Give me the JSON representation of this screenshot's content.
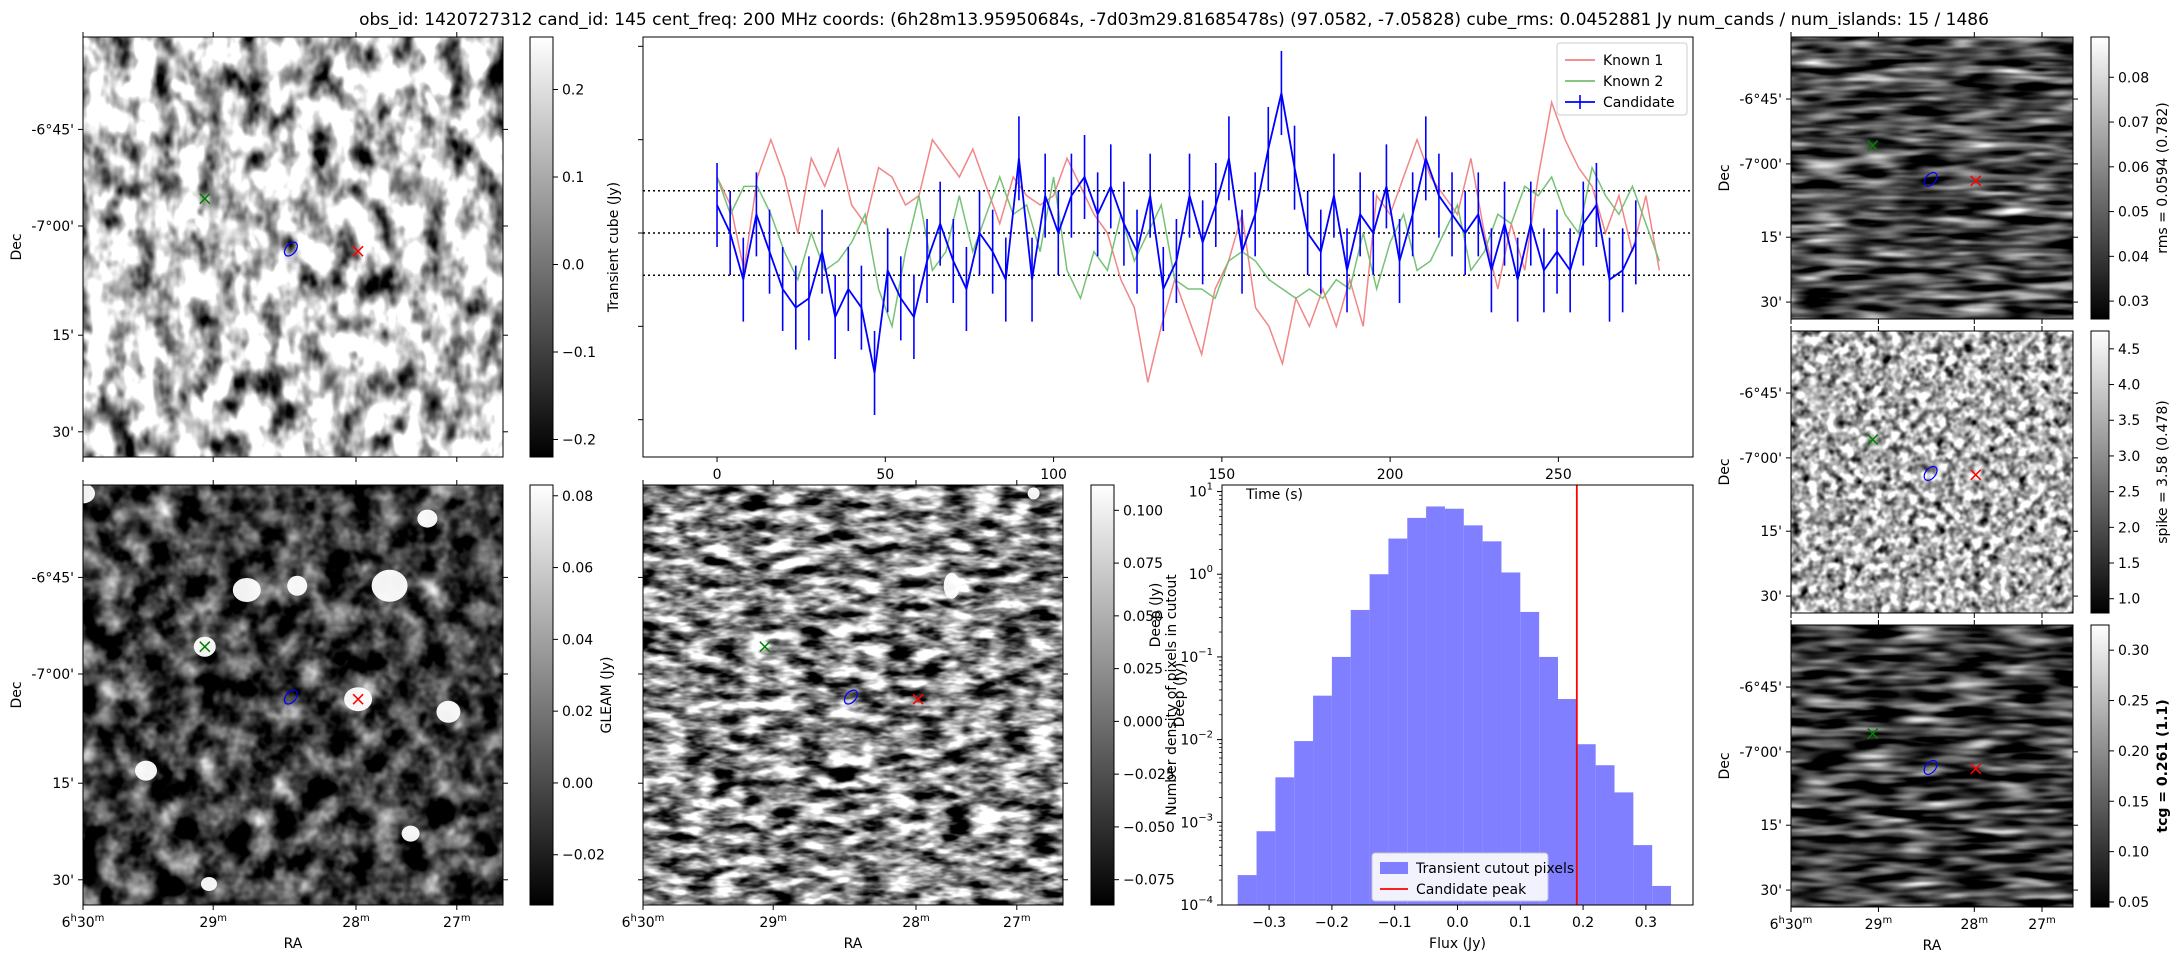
{
  "suptitle": "obs_id: 1420727312 cand_id: 145 cent_freq: 200 MHz coords: (6h28m13.95950684s, -7d03m29.81685478s) (97.0582, -7.05828) cube_rms: 0.0452881 Jy num_cands / num_islands: 15 / 1486",
  "axes_common": {
    "dec_ticks": [
      "-6°45'",
      "-7°00'",
      "15'",
      "30'"
    ],
    "dec_label": "Dec",
    "ra_ticks": [
      "6h30m",
      "29m",
      "28m",
      "27m"
    ],
    "ra_label": "RA"
  },
  "colors": {
    "known1": "#f08080",
    "known2": "#6fbf6f",
    "candidate": "#0000ff",
    "hist": "#7f7fff",
    "peak": "#ff0000",
    "marker_known1": "#ff0000",
    "marker_known2": "#008000",
    "marker_candidate": "#0000ff"
  },
  "chart_data": [
    {
      "id": "transient_map",
      "type": "heatmap",
      "colorbar": {
        "range": [
          -0.22,
          0.26
        ],
        "ticks": [
          "0.2",
          "0.1",
          "0.0",
          "−0.1",
          "−0.2"
        ],
        "tick_values": [
          0.2,
          0.1,
          0.0,
          -0.1,
          -0.2
        ]
      },
      "markers": [
        "known-2 (green x)",
        "candidate (blue ellipse)",
        "known-1 (red x)"
      ]
    },
    {
      "id": "lightcurve",
      "type": "line",
      "ylabel": "Transient cube (Jy)",
      "xlabel": "Time (s)",
      "x_ticks": [
        0,
        50,
        100,
        150,
        200,
        250
      ],
      "xlim": [
        -22,
        290
      ],
      "ylim": [
        -0.24,
        0.21
      ],
      "hlines": [
        0.0453,
        0.0,
        -0.0453
      ],
      "legend": {
        "position": "top-right",
        "entries": [
          "Known 1",
          "Known 2",
          "Candidate"
        ]
      },
      "series": [
        {
          "name": "Known 1",
          "x_step": 4,
          "values": [
            0.06,
            0.03,
            -0.04,
            0.06,
            0.1,
            0.06,
            0.0,
            0.08,
            0.05,
            0.09,
            0.03,
            0.01,
            0.07,
            0.06,
            0.03,
            0.04,
            0.1,
            0.08,
            0.06,
            0.09,
            0.05,
            0.01,
            0.06,
            0.04,
            0.03,
            0.04,
            0.08,
            0.05,
            0.02,
            0.0,
            -0.05,
            -0.08,
            -0.16,
            -0.1,
            -0.05,
            -0.09,
            -0.13,
            -0.06,
            -0.03,
            0.02,
            -0.08,
            -0.1,
            -0.14,
            -0.07,
            -0.1,
            -0.06,
            -0.1,
            -0.05,
            -0.1,
            0.04,
            0.02,
            0.06,
            0.1,
            0.06,
            0.04,
            0.02,
            0.08,
            0.0,
            -0.06,
            0.01,
            -0.04,
            0.06,
            0.14,
            0.1,
            0.07,
            0.05,
            0.0,
            0.04,
            -0.02,
            0.04,
            -0.04
          ]
        },
        {
          "name": "Known 2",
          "x_step": 4,
          "values": [
            0.06,
            0.02,
            0.05,
            0.05,
            0.02,
            -0.02,
            -0.05,
            0.0,
            -0.04,
            -0.03,
            -0.01,
            0.02,
            -0.06,
            -0.1,
            -0.02,
            0.04,
            -0.04,
            -0.02,
            0.04,
            -0.02,
            0.02,
            0.06,
            0.02,
            0.03,
            -0.02,
            0.06,
            -0.04,
            -0.07,
            -0.02,
            -0.04,
            0.02,
            -0.03,
            0.0,
            0.03,
            -0.05,
            -0.06,
            -0.06,
            -0.07,
            -0.03,
            -0.02,
            -0.03,
            -0.05,
            -0.06,
            -0.07,
            -0.06,
            -0.07,
            -0.05,
            -0.06,
            0.0,
            -0.06,
            -0.01,
            0.02,
            -0.04,
            -0.03,
            0.0,
            0.03,
            -0.04,
            -0.02,
            0.02,
            0.01,
            0.05,
            0.04,
            0.06,
            0.02,
            0.0,
            0.07,
            0.04,
            0.02,
            0.05,
            0.01,
            -0.03
          ]
        },
        {
          "name": "Candidate",
          "x_step": 3.9,
          "error": 0.045,
          "values": [
            0.03,
            0.0,
            -0.05,
            0.02,
            -0.02,
            -0.06,
            -0.08,
            -0.07,
            -0.02,
            -0.09,
            -0.06,
            -0.08,
            -0.15,
            -0.04,
            -0.07,
            -0.09,
            -0.03,
            0.01,
            -0.03,
            -0.06,
            0.0,
            -0.02,
            -0.05,
            0.08,
            -0.05,
            0.04,
            0.0,
            0.04,
            0.06,
            0.02,
            0.05,
            0.01,
            -0.02,
            0.04,
            -0.06,
            -0.03,
            0.04,
            -0.01,
            0.03,
            0.08,
            -0.02,
            0.02,
            0.09,
            0.15,
            0.07,
            0.0,
            -0.02,
            0.04,
            -0.04,
            0.02,
            0.0,
            0.05,
            -0.03,
            0.02,
            0.08,
            0.04,
            0.02,
            0.0,
            0.02,
            -0.04,
            0.01,
            -0.05,
            0.01,
            -0.04,
            -0.02,
            -0.04,
            0.01,
            0.03,
            -0.05,
            -0.04,
            -0.01
          ]
        }
      ]
    },
    {
      "id": "rms_map",
      "type": "heatmap",
      "colorbar": {
        "range": [
          0.026,
          0.089
        ],
        "label": "rms = 0.0594 (0.782)",
        "ticks": [
          "0.08",
          "0.07",
          "0.06",
          "0.05",
          "0.04",
          "0.03"
        ],
        "tick_values": [
          0.08,
          0.07,
          0.06,
          0.05,
          0.04,
          0.03
        ]
      }
    },
    {
      "id": "gleam_map",
      "type": "heatmap",
      "colorbar": {
        "range": [
          -0.034,
          0.083
        ],
        "label": "GLEAM (Jy)",
        "ticks": [
          "0.08",
          "0.06",
          "0.04",
          "0.02",
          "0.00",
          "−0.02"
        ],
        "tick_values": [
          0.08,
          0.06,
          0.04,
          0.02,
          0.0,
          -0.02
        ]
      }
    },
    {
      "id": "deep_map",
      "type": "heatmap",
      "colorbar": {
        "range": [
          -0.087,
          0.112
        ],
        "label": "Deep (Jy)",
        "ticks": [
          "0.100",
          "0.075",
          "0.050",
          "0.025",
          "0.000",
          "−0.025",
          "−0.050",
          "−0.075"
        ],
        "tick_values": [
          0.1,
          0.075,
          0.05,
          0.025,
          0.0,
          -0.025,
          -0.05,
          -0.075
        ]
      }
    },
    {
      "id": "histogram",
      "type": "bar",
      "xlabel": "Flux (Jy)",
      "ylabel": "Number density of pixels in cutout",
      "x_ticks": [
        "−0.3",
        "−0.2",
        "−0.1",
        "0.0",
        "0.1",
        "0.2",
        "0.3"
      ],
      "x_tick_values": [
        -0.3,
        -0.2,
        -0.1,
        0.0,
        0.1,
        0.2,
        0.3
      ],
      "xlim": [
        -0.375,
        0.375
      ],
      "y_scale": "log",
      "y_ticks": [
        "10^1",
        "10^0",
        "10^-1",
        "10^-2",
        "10^-3",
        "10^-4"
      ],
      "ylim": [
        0.0001,
        12
      ],
      "bin_edges": [
        -0.35,
        -0.32,
        -0.29,
        -0.26,
        -0.23,
        -0.2,
        -0.17,
        -0.14,
        -0.11,
        -0.08,
        -0.05,
        -0.02,
        0.01,
        0.04,
        0.07,
        0.1,
        0.13,
        0.16,
        0.19,
        0.22,
        0.25,
        0.28,
        0.31,
        0.34
      ],
      "values": [
        0.00023,
        0.00078,
        0.0035,
        0.0096,
        0.034,
        0.1,
        0.37,
        1.0,
        2.7,
        4.8,
        6.6,
        6.2,
        3.9,
        2.5,
        1.05,
        0.35,
        0.1,
        0.031,
        0.0088,
        0.0049,
        0.0023,
        0.00053,
        0.00017
      ],
      "peak_line": 0.19,
      "legend": {
        "position": "bottom-center",
        "entries": [
          "Transient cutout pixels",
          "Candidate peak"
        ]
      }
    },
    {
      "id": "spike_map",
      "type": "heatmap",
      "colorbar": {
        "range": [
          0.8,
          4.75
        ],
        "label": "spike = 3.58 (0.478)",
        "ticks": [
          "4.5",
          "4.0",
          "3.5",
          "3.0",
          "2.5",
          "2.0",
          "1.5",
          "1.0"
        ],
        "tick_values": [
          4.5,
          4.0,
          3.5,
          3.0,
          2.5,
          2.0,
          1.5,
          1.0
        ]
      }
    },
    {
      "id": "tcg_map",
      "type": "heatmap",
      "colorbar": {
        "range": [
          0.045,
          0.325
        ],
        "label": "tcg = 0.261 (1.1)",
        "ticks": [
          "0.30",
          "0.25",
          "0.20",
          "0.15",
          "0.10",
          "0.05"
        ],
        "tick_values": [
          0.3,
          0.25,
          0.2,
          0.15,
          0.1,
          0.05
        ]
      }
    }
  ]
}
